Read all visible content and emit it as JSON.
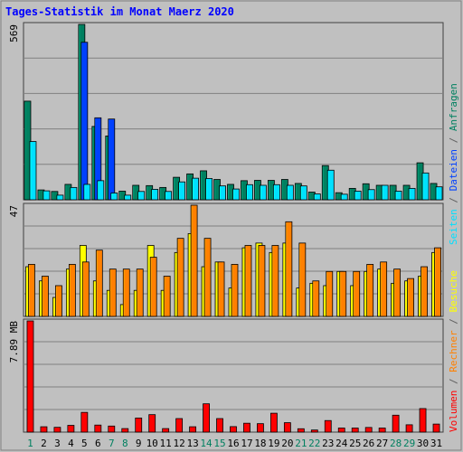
{
  "chart_data": [
    {
      "type": "bar",
      "title": "Tages-Statistik im Monat Maerz 2020",
      "ymax_label": "569",
      "ylim": [
        0,
        569
      ],
      "grid": true,
      "categories": [
        "1",
        "2",
        "3",
        "4",
        "5",
        "6",
        "7",
        "8",
        "9",
        "10",
        "11",
        "12",
        "13",
        "14",
        "15",
        "16",
        "17",
        "18",
        "19",
        "20",
        "21",
        "22",
        "23",
        "24",
        "25",
        "26",
        "27",
        "28",
        "29",
        "30",
        "31"
      ],
      "weekend_days": [
        "1",
        "7",
        "8",
        "14",
        "15",
        "21",
        "22",
        "28",
        "29"
      ],
      "series": [
        {
          "name": "Anfragen",
          "color": "#008060",
          "values": [
            320,
            32,
            27,
            50,
            569,
            238,
            207,
            28,
            47,
            46,
            40,
            73,
            84,
            94,
            66,
            50,
            62,
            63,
            63,
            66,
            53,
            25,
            111,
            23,
            37,
            52,
            47,
            47,
            47,
            120,
            53
          ]
        },
        {
          "name": "Dateien",
          "color": "#0040ff",
          "values": [
            0,
            0,
            0,
            0,
            511,
            266,
            262,
            0,
            0,
            0,
            0,
            0,
            0,
            0,
            0,
            0,
            0,
            0,
            0,
            0,
            0,
            0,
            0,
            0,
            0,
            0,
            0,
            0,
            0,
            0,
            0
          ]
        },
        {
          "name": "Seiten",
          "color": "#00e0ff",
          "values": [
            189,
            29,
            15,
            40,
            50,
            62,
            22,
            15,
            27,
            34,
            27,
            58,
            70,
            69,
            45,
            35,
            49,
            47,
            49,
            47,
            45,
            19,
            96,
            18,
            28,
            33,
            47,
            28,
            37,
            87,
            42
          ]
        }
      ]
    },
    {
      "type": "bar",
      "ymax_label": "47",
      "ylim": [
        0,
        47
      ],
      "grid": true,
      "categories": [
        "1",
        "2",
        "3",
        "4",
        "5",
        "6",
        "7",
        "8",
        "9",
        "10",
        "11",
        "12",
        "13",
        "14",
        "15",
        "16",
        "17",
        "18",
        "19",
        "20",
        "21",
        "22",
        "23",
        "24",
        "25",
        "26",
        "27",
        "28",
        "29",
        "30",
        "31"
      ],
      "series": [
        {
          "name": "Besuche",
          "color": "#ffff00",
          "values": [
            21,
            15,
            8,
            20,
            30,
            15,
            11,
            5,
            11,
            30,
            11,
            27,
            35,
            21,
            23,
            12,
            29,
            31,
            27,
            31,
            12,
            14,
            13,
            19,
            13,
            19,
            20,
            14,
            15,
            17,
            27
          ]
        },
        {
          "name": "Rechner",
          "color": "#ff8000",
          "values": [
            22,
            17,
            13,
            22,
            23,
            28,
            20,
            20,
            20,
            25,
            17,
            33,
            47,
            33,
            23,
            22,
            30,
            30,
            30,
            40,
            31,
            15,
            19,
            19,
            19,
            22,
            23,
            20,
            16,
            21,
            29
          ]
        }
      ]
    },
    {
      "type": "bar",
      "ymax_label": "7.89 MB",
      "ylim": [
        0,
        7.89
      ],
      "grid": true,
      "categories": [
        "1",
        "2",
        "3",
        "4",
        "5",
        "6",
        "7",
        "8",
        "9",
        "10",
        "11",
        "12",
        "13",
        "14",
        "15",
        "16",
        "17",
        "18",
        "19",
        "20",
        "21",
        "22",
        "23",
        "24",
        "25",
        "26",
        "27",
        "28",
        "29",
        "30",
        "31"
      ],
      "series": [
        {
          "name": "Volumen",
          "color": "#ff0000",
          "values": [
            7.89,
            0.38,
            0.34,
            0.48,
            1.4,
            0.5,
            0.43,
            0.25,
            1.0,
            1.24,
            0.25,
            0.96,
            0.38,
            2.01,
            0.96,
            0.39,
            0.63,
            0.6,
            1.34,
            0.67,
            0.24,
            0.15,
            0.82,
            0.29,
            0.29,
            0.33,
            0.29,
            1.2,
            0.52,
            1.67,
            0.57
          ]
        }
      ]
    }
  ],
  "legend": {
    "lower": [
      {
        "text": "Volumen",
        "color": "#ff0000"
      },
      {
        "text": " / ",
        "color": "#606060"
      },
      {
        "text": "Rechner",
        "color": "#ff8000"
      },
      {
        "text": " / ",
        "color": "#606060"
      },
      {
        "text": "Besuche",
        "color": "#ffff00"
      }
    ],
    "upper": [
      {
        "text": "Seiten",
        "color": "#00e0ff"
      },
      {
        "text": " / ",
        "color": "#606060"
      },
      {
        "text": "Dateien",
        "color": "#0040ff"
      },
      {
        "text": " / ",
        "color": "#606060"
      },
      {
        "text": "Anfragen",
        "color": "#008060"
      }
    ],
    "separator": "/"
  },
  "colors": {
    "background": "#c0c0c0",
    "title": "#0000ff",
    "weekday_label": "#000000",
    "weekend_label": "#008060",
    "gridline": "#808080"
  }
}
